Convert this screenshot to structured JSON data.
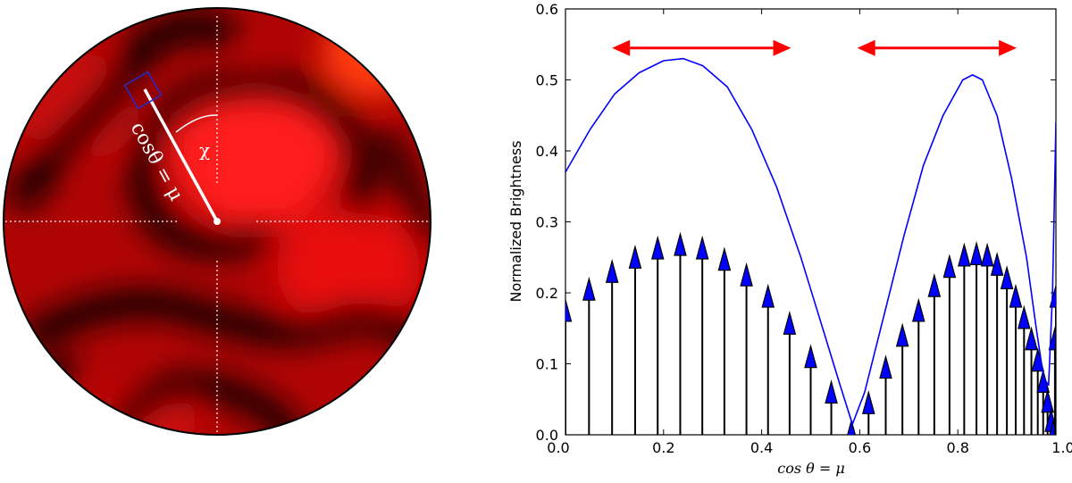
{
  "chart_data": [
    {
      "type": "image",
      "panel": "left",
      "labels": {
        "mu_label": "cosθ = μ",
        "chi_label": "χ"
      },
      "colors": {
        "disk_bright": "#e80c0c",
        "disk_dark": "#1a0000",
        "marker_box": "#1a1aa0",
        "guide_lines": "#ffffff"
      }
    },
    {
      "type": "line",
      "panel": "right",
      "xlabel": "cos  θ = μ",
      "ylabel": "Normalized Brightness",
      "xlim": [
        0.0,
        1.0
      ],
      "ylim": [
        0.0,
        0.6
      ],
      "xticks": [
        "0.0",
        "0.2",
        "0.4",
        "0.6",
        "0.8",
        "1.0"
      ],
      "yticks": [
        "0.0",
        "0.1",
        "0.2",
        "0.3",
        "0.4",
        "0.5",
        "0.6"
      ],
      "series": [
        {
          "style": "line",
          "color": "#0000ff",
          "x": [
            0.0,
            0.05,
            0.1,
            0.15,
            0.2,
            0.24,
            0.28,
            0.33,
            0.38,
            0.43,
            0.48,
            0.52,
            0.56,
            0.585,
            0.61,
            0.65,
            0.69,
            0.73,
            0.77,
            0.81,
            0.83,
            0.85,
            0.88,
            0.91,
            0.94,
            0.96,
            0.975,
            0.985,
            0.993,
            1.0
          ],
          "y": [
            0.37,
            0.43,
            0.48,
            0.51,
            0.527,
            0.53,
            0.52,
            0.49,
            0.43,
            0.35,
            0.25,
            0.16,
            0.07,
            0.015,
            0.06,
            0.17,
            0.28,
            0.38,
            0.45,
            0.5,
            0.507,
            0.5,
            0.45,
            0.36,
            0.25,
            0.15,
            0.08,
            0.07,
            0.2,
            0.44
          ]
        },
        {
          "style": "stem-arrow",
          "color": "#0000ff",
          "x": [
            0.0,
            0.048,
            0.095,
            0.142,
            0.188,
            0.234,
            0.279,
            0.324,
            0.369,
            0.413,
            0.457,
            0.5,
            0.542,
            0.583,
            0.618,
            0.653,
            0.687,
            0.72,
            0.752,
            0.783,
            0.813,
            0.838,
            0.86,
            0.88,
            0.9,
            0.918,
            0.935,
            0.95,
            0.963,
            0.974,
            0.983,
            0.99,
            0.995,
            0.998,
            1.0
          ],
          "y": [
            0.19,
            0.22,
            0.245,
            0.265,
            0.278,
            0.283,
            0.278,
            0.262,
            0.24,
            0.21,
            0.172,
            0.125,
            0.075,
            0.02,
            0.06,
            0.11,
            0.155,
            0.19,
            0.225,
            0.252,
            0.268,
            0.27,
            0.268,
            0.255,
            0.236,
            0.21,
            0.18,
            0.15,
            0.12,
            0.09,
            0.062,
            0.035,
            0.02,
            0.15,
            0.21
          ]
        }
      ],
      "annotations": [
        {
          "type": "double-arrow",
          "color": "#ff0000",
          "x": [
            0.095,
            0.46
          ],
          "y": 0.545
        },
        {
          "type": "double-arrow",
          "color": "#ff0000",
          "x": [
            0.595,
            0.92
          ],
          "y": 0.545
        }
      ]
    }
  ]
}
